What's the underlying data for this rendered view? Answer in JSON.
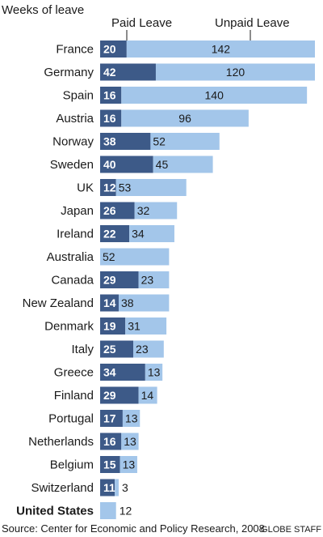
{
  "chart_data": {
    "type": "bar",
    "stacked": true,
    "orientation": "horizontal",
    "title": "Weeks of leave",
    "categories": [
      "France",
      "Germany",
      "Spain",
      "Austria",
      "Norway",
      "Sweden",
      "UK",
      "Japan",
      "Ireland",
      "Australia",
      "Canada",
      "New Zealand",
      "Denmark",
      "Italy",
      "Greece",
      "Finland",
      "Portugal",
      "Netherlands",
      "Belgium",
      "Switzerland",
      "United States"
    ],
    "highlight_category": "United States",
    "series": [
      {
        "name": "Paid Leave",
        "color": "#3d5a88",
        "values": [
          20,
          42,
          16,
          16,
          38,
          40,
          12,
          26,
          22,
          0,
          29,
          14,
          19,
          25,
          34,
          29,
          17,
          16,
          15,
          11,
          0
        ]
      },
      {
        "name": "Unpaid Leave",
        "color": "#a3c6ea",
        "values": [
          142,
          120,
          140,
          96,
          52,
          45,
          53,
          32,
          34,
          52,
          23,
          38,
          31,
          23,
          13,
          14,
          13,
          13,
          13,
          3,
          12
        ]
      }
    ],
    "legend": "top",
    "grid": false,
    "source": "Source:  Center for Economic and Policy Research, 2008",
    "credit": "GLOBE STAFF"
  }
}
